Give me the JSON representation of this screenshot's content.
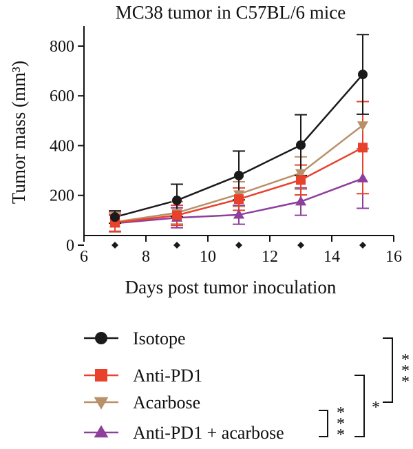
{
  "chart_data": {
    "type": "line",
    "title": "MC38 tumor in C57BL/6 mice",
    "xlabel": "Days post tumor inoculation",
    "ylabel": "Tumor mass (mm³)",
    "xlim": [
      6,
      16
    ],
    "ylim": [
      0,
      880
    ],
    "xticks": [
      6,
      8,
      10,
      12,
      14,
      16
    ],
    "yticks": [
      0,
      200,
      400,
      600,
      800
    ],
    "grid": false,
    "legend_position": "bottom",
    "series": [
      {
        "name": "Isotope",
        "color": "#1a1a1a",
        "marker": "circle",
        "x": [
          7,
          9,
          11,
          13,
          15
        ],
        "y": [
          113,
          180,
          280,
          402,
          686
        ],
        "err": [
          25,
          65,
          98,
          122,
          160
        ]
      },
      {
        "name": "Anti-PD1",
        "color": "#e8412c",
        "marker": "square",
        "x": [
          7,
          9,
          11,
          13,
          15
        ],
        "y": [
          90,
          120,
          185,
          262,
          392
        ],
        "err": [
          35,
          40,
          45,
          60,
          185
        ]
      },
      {
        "name": "Acarbose",
        "color": "#b8906a",
        "marker": "triangle-down",
        "x": [
          7,
          9,
          11,
          13,
          15
        ],
        "y": [
          93,
          130,
          205,
          290,
          482
        ],
        "err": [
          40,
          45,
          50,
          65,
          95
        ]
      },
      {
        "name": "Anti-PD1 + acarbose",
        "color": "#8e3f9c",
        "marker": "triangle-up",
        "x": [
          7,
          9,
          11,
          13,
          15
        ],
        "y": [
          88,
          110,
          122,
          175,
          268
        ],
        "err": [
          32,
          40,
          38,
          55,
          120
        ]
      }
    ],
    "baseline_series": {
      "color": "#1a1a1a",
      "marker": "diamond",
      "x": [
        7,
        9,
        11,
        13,
        15
      ],
      "y": [
        0,
        0,
        0,
        0,
        0
      ]
    },
    "significance": [
      {
        "between": [
          "Isotope",
          "Anti-PD1 + acarbose"
        ],
        "label": "***"
      },
      {
        "between": [
          "Anti-PD1",
          "Anti-PD1 + acarbose"
        ],
        "label": "*"
      },
      {
        "between": [
          "Acarbose",
          "Anti-PD1 + acarbose"
        ],
        "label": "***"
      }
    ]
  }
}
